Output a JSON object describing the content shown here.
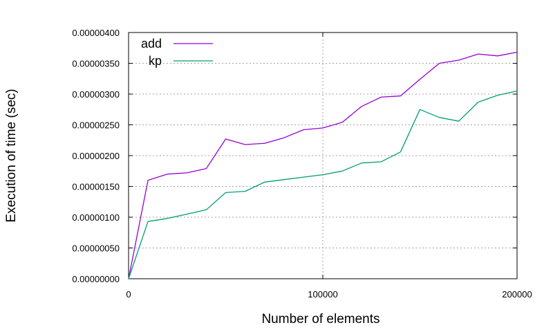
{
  "chart_data": {
    "type": "line",
    "xlabel": "Number of elements",
    "ylabel": "Execution of time (sec)",
    "xlim": [
      0,
      200000
    ],
    "ylim": [
      0,
      4e-06
    ],
    "xticks": [
      {
        "value": 0,
        "label": "0"
      },
      {
        "value": 100000,
        "label": "100000"
      },
      {
        "value": 200000,
        "label": "200000"
      }
    ],
    "yticks": [
      {
        "value": 0,
        "label": "0.00000000"
      },
      {
        "value": 5e-07,
        "label": "0.00000050"
      },
      {
        "value": 1e-06,
        "label": "0.00000100"
      },
      {
        "value": 1.5e-06,
        "label": "0.00000150"
      },
      {
        "value": 2e-06,
        "label": "0.00000200"
      },
      {
        "value": 2.5e-06,
        "label": "0.00000250"
      },
      {
        "value": 3e-06,
        "label": "0.00000300"
      },
      {
        "value": 3.5e-06,
        "label": "0.00000350"
      },
      {
        "value": 4e-06,
        "label": "0.00000400"
      }
    ],
    "grid": true,
    "legend_position": "top-left",
    "x": [
      0,
      10000,
      20000,
      30000,
      40000,
      50000,
      60000,
      70000,
      80000,
      90000,
      100000,
      110000,
      120000,
      130000,
      140000,
      150000,
      160000,
      170000,
      180000,
      190000,
      200000
    ],
    "series": [
      {
        "name": "add",
        "color": "#9400d3",
        "values": [
          0.0,
          1.6e-06,
          1.7e-06,
          1.72e-06,
          1.79e-06,
          2.27e-06,
          2.18e-06,
          2.2e-06,
          2.29e-06,
          2.42e-06,
          2.45e-06,
          2.54e-06,
          2.8e-06,
          2.95e-06,
          2.97e-06,
          3.24e-06,
          3.5e-06,
          3.55e-06,
          3.65e-06,
          3.62e-06,
          3.68e-06
        ]
      },
      {
        "name": "kp",
        "color": "#009e73",
        "values": [
          0.0,
          9.3e-07,
          9.8e-07,
          1.05e-06,
          1.12e-06,
          1.4e-06,
          1.42e-06,
          1.57e-06,
          1.61e-06,
          1.65e-06,
          1.69e-06,
          1.75e-06,
          1.88e-06,
          1.9e-06,
          2.06e-06,
          2.75e-06,
          2.62e-06,
          2.56e-06,
          2.87e-06,
          2.98e-06,
          3.05e-06
        ]
      }
    ]
  }
}
